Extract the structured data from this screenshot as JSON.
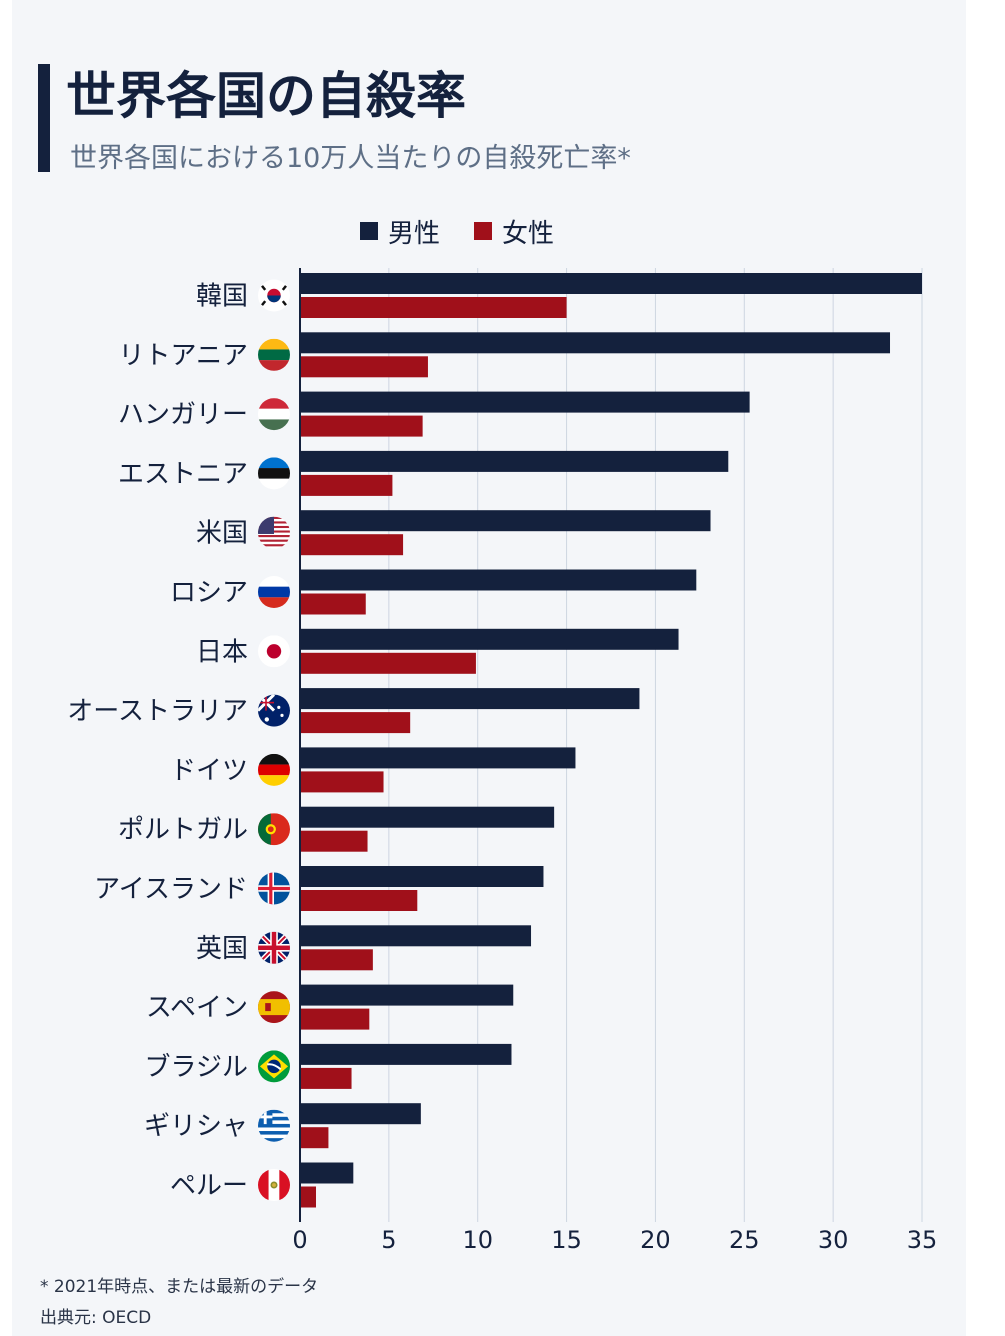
{
  "title": "世界各国の自殺率",
  "subtitle": "世界各国における10万人当たりの自殺死亡率*",
  "legend": [
    {
      "label": "男性",
      "color": "#14213d"
    },
    {
      "label": "女性",
      "color": "#a0101a"
    }
  ],
  "footnote": "* 2021年時点、または最新のデータ",
  "source": "出典元: OECD",
  "chart_data": {
    "type": "bar",
    "orientation": "horizontal",
    "categories": [
      "韓国",
      "リトアニア",
      "ハンガリー",
      "エストニア",
      "米国",
      "ロシア",
      "日本",
      "オーストラリア",
      "ドイツ",
      "ポルトガル",
      "アイスランド",
      "英国",
      "スペイン",
      "ブラジル",
      "ギリシャ",
      "ペルー"
    ],
    "flags": [
      "korea-flag-icon",
      "lithuania-flag-icon",
      "hungary-flag-icon",
      "estonia-flag-icon",
      "usa-flag-icon",
      "russia-flag-icon",
      "japan-flag-icon",
      "australia-flag-icon",
      "germany-flag-icon",
      "portugal-flag-icon",
      "iceland-flag-icon",
      "uk-flag-icon",
      "spain-flag-icon",
      "brazil-flag-icon",
      "greece-flag-icon",
      "peru-flag-icon"
    ],
    "series": [
      {
        "name": "男性",
        "color": "#14213d",
        "values": [
          35.0,
          33.2,
          25.3,
          24.1,
          23.1,
          22.3,
          21.3,
          19.1,
          15.5,
          14.3,
          13.7,
          13.0,
          12.0,
          11.9,
          6.8,
          3.0
        ]
      },
      {
        "name": "女性",
        "color": "#a0101a",
        "values": [
          15.0,
          7.2,
          6.9,
          5.2,
          5.8,
          3.7,
          9.9,
          6.2,
          4.7,
          3.8,
          6.6,
          4.1,
          3.9,
          2.9,
          1.6,
          0.9
        ]
      }
    ],
    "xticks": [
      0,
      5,
      10,
      15,
      20,
      25,
      30,
      35
    ],
    "xlim": [
      0,
      35
    ],
    "xlabel": "",
    "ylabel": "",
    "grid": true,
    "legend_position": "top"
  }
}
